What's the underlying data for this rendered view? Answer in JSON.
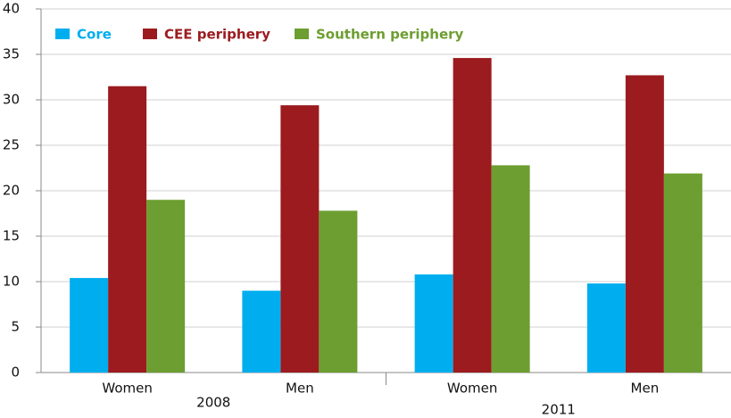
{
  "chart_data": {
    "type": "bar",
    "categories": [
      "Women",
      "Men",
      "Women",
      "Men"
    ],
    "groups": [
      "2008",
      "2011"
    ],
    "series": [
      {
        "name": "Core",
        "color": "#00aeef",
        "values": [
          10.4,
          9.0,
          10.8,
          9.8
        ]
      },
      {
        "name": "CEE periphery",
        "color": "#9b1b1f",
        "values": [
          31.5,
          29.4,
          34.6,
          32.7
        ]
      },
      {
        "name": "Southern periphery",
        "color": "#6d9e31",
        "values": [
          19.0,
          17.8,
          22.8,
          21.9
        ]
      }
    ],
    "ylim": [
      0,
      40
    ],
    "yticks": [
      0,
      5,
      10,
      15,
      20,
      25,
      30,
      35,
      40
    ],
    "grid": true,
    "legend": "top-left"
  }
}
